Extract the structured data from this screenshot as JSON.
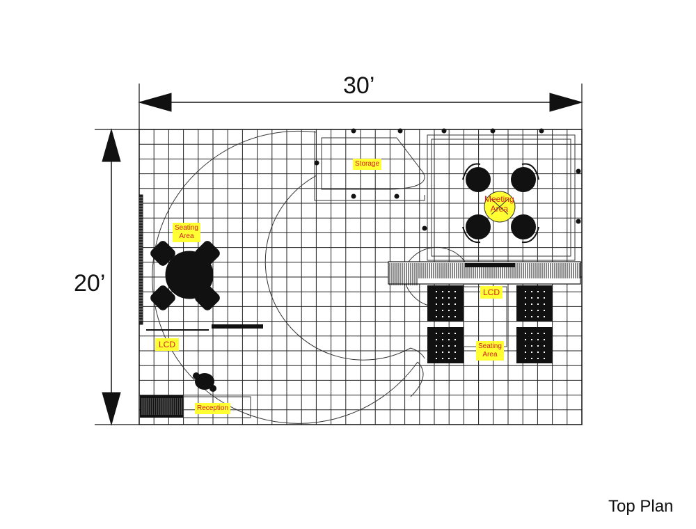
{
  "dimensions": {
    "width_label": "30’",
    "height_label": "20’"
  },
  "caption": "Top Plan",
  "zones": {
    "storage": "Storage",
    "meeting_area": "Meeting\nArea",
    "seating_area_left": "Seating\nArea",
    "lcd_left": "LCD",
    "lcd_right": "LCD",
    "seating_area_right": "Seating\nArea",
    "reception": "Reception"
  },
  "colors": {
    "label_background": "#ffff33",
    "label_text": "#d42020",
    "lines": "#111111"
  }
}
